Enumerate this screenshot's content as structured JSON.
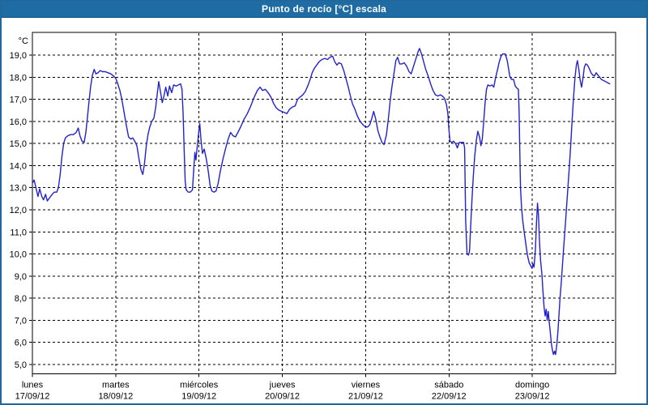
{
  "window": {
    "title": "Punto de rocío [°C] escala",
    "colors": {
      "title_bar": "#1e6ca3",
      "frame": "#20689b",
      "title_text": "#ffffff"
    }
  },
  "chart_data": {
    "type": "line",
    "title": "Punto de rocío [°C] escala",
    "y_unit_label": "°C",
    "y_tick_labels": [
      "19,0",
      "18,0",
      "17,0",
      "16,0",
      "15,0",
      "14,0",
      "13,0",
      "12,0",
      "11,0",
      "10,0",
      "9,0",
      "8,0",
      "7,0",
      "6,0",
      "5,0"
    ],
    "y_tick_values": [
      19,
      18,
      17,
      16,
      15,
      14,
      13,
      12,
      11,
      10,
      9,
      8,
      7,
      6,
      5
    ],
    "ylim": [
      4.6,
      20.0
    ],
    "grid": "dashed",
    "line_color": "#2222cc",
    "x_axis_days": [
      {
        "name": "lunes",
        "date": "17/09/12"
      },
      {
        "name": "martes",
        "date": "18/09/12"
      },
      {
        "name": "miércoles",
        "date": "19/09/12"
      },
      {
        "name": "jueves",
        "date": "20/09/12"
      },
      {
        "name": "viernes",
        "date": "21/09/12"
      },
      {
        "name": "sábado",
        "date": "22/09/12"
      },
      {
        "name": "domingo",
        "date": "23/09/12"
      }
    ],
    "x_unit": "hours_since_monday_00h",
    "x_range_hours": [
      0,
      168
    ],
    "points": [
      [
        0,
        13.2
      ],
      [
        0.5,
        13.35
      ],
      [
        1.1,
        12.95
      ],
      [
        1.6,
        12.6
      ],
      [
        2.1,
        12.95
      ],
      [
        2.7,
        12.6
      ],
      [
        3.2,
        12.45
      ],
      [
        3.8,
        12.7
      ],
      [
        4.3,
        12.4
      ],
      [
        5,
        12.55
      ],
      [
        5.7,
        12.7
      ],
      [
        6.3,
        12.8
      ],
      [
        7,
        12.8
      ],
      [
        7.5,
        13
      ],
      [
        8,
        13.6
      ],
      [
        8.5,
        14.4
      ],
      [
        9,
        15
      ],
      [
        9.5,
        15.25
      ],
      [
        10.2,
        15.35
      ],
      [
        11,
        15.4
      ],
      [
        11.8,
        15.4
      ],
      [
        12.6,
        15.5
      ],
      [
        13.2,
        15.7
      ],
      [
        13.7,
        15.35
      ],
      [
        14.3,
        15.1
      ],
      [
        14.9,
        15.05
      ],
      [
        15.4,
        15.5
      ],
      [
        15.8,
        16.1
      ],
      [
        16.3,
        16.9
      ],
      [
        16.8,
        17.6
      ],
      [
        17.3,
        18.1
      ],
      [
        17.8,
        18.35
      ],
      [
        18.3,
        18.15
      ],
      [
        18.9,
        18.2
      ],
      [
        19.5,
        18.3
      ],
      [
        20.2,
        18.25
      ],
      [
        21,
        18.25
      ],
      [
        21.8,
        18.2
      ],
      [
        22.6,
        18.15
      ],
      [
        23.4,
        18.05
      ],
      [
        24,
        17.95
      ],
      [
        24.6,
        17.7
      ],
      [
        25.2,
        17.4
      ],
      [
        25.7,
        17.05
      ],
      [
        26.2,
        16.6
      ],
      [
        26.7,
        16.15
      ],
      [
        27.2,
        15.7
      ],
      [
        27.7,
        15.3
      ],
      [
        28.3,
        15.2
      ],
      [
        28.9,
        15.25
      ],
      [
        29.5,
        15.1
      ],
      [
        30.1,
        14.9
      ],
      [
        30.7,
        14.3
      ],
      [
        31.3,
        13.8
      ],
      [
        31.8,
        13.6
      ],
      [
        32.3,
        14.1
      ],
      [
        32.8,
        14.9
      ],
      [
        33.3,
        15.4
      ],
      [
        33.8,
        15.75
      ],
      [
        34.4,
        16
      ],
      [
        35,
        16.15
      ],
      [
        35.5,
        16.6
      ],
      [
        36,
        17.3
      ],
      [
        36.4,
        17.8
      ],
      [
        36.9,
        17.35
      ],
      [
        37.4,
        16.85
      ],
      [
        37.9,
        17.15
      ],
      [
        38.4,
        17.55
      ],
      [
        39,
        17.15
      ],
      [
        39.5,
        17.6
      ],
      [
        40.1,
        17.3
      ],
      [
        40.7,
        17.65
      ],
      [
        41.4,
        17.6
      ],
      [
        42.1,
        17.65
      ],
      [
        42.7,
        17.7
      ],
      [
        43.1,
        17.45
      ],
      [
        43.4,
        16.4
      ],
      [
        43.7,
        14.8
      ],
      [
        44,
        13.3
      ],
      [
        44.3,
        12.9
      ],
      [
        44.9,
        12.8
      ],
      [
        45.5,
        12.8
      ],
      [
        46.1,
        12.9
      ],
      [
        46.5,
        13.9
      ],
      [
        46.8,
        14.6
      ],
      [
        47.1,
        14.25
      ],
      [
        47.5,
        14.9
      ],
      [
        47.9,
        15.5
      ],
      [
        48.2,
        15.9
      ],
      [
        48.6,
        15.1
      ],
      [
        49,
        14.55
      ],
      [
        49.5,
        14.75
      ],
      [
        50.1,
        14.3
      ],
      [
        50.7,
        13.7
      ],
      [
        51.2,
        13.1
      ],
      [
        51.7,
        12.85
      ],
      [
        52.3,
        12.8
      ],
      [
        52.9,
        12.85
      ],
      [
        53.5,
        13.2
      ],
      [
        54.2,
        13.8
      ],
      [
        54.9,
        14.3
      ],
      [
        55.7,
        14.8
      ],
      [
        56.4,
        15.2
      ],
      [
        57.1,
        15.5
      ],
      [
        57.8,
        15.35
      ],
      [
        58.5,
        15.3
      ],
      [
        59.2,
        15.5
      ],
      [
        60,
        15.75
      ],
      [
        61,
        16.1
      ],
      [
        61.9,
        16.35
      ],
      [
        62.9,
        16.7
      ],
      [
        63.9,
        17.1
      ],
      [
        64.8,
        17.4
      ],
      [
        65.6,
        17.55
      ],
      [
        66.3,
        17.4
      ],
      [
        67.1,
        17.45
      ],
      [
        67.9,
        17.3
      ],
      [
        68.7,
        17.1
      ],
      [
        69.5,
        16.8
      ],
      [
        70.3,
        16.6
      ],
      [
        71.1,
        16.5
      ],
      [
        71.9,
        16.45
      ],
      [
        72.6,
        16.4
      ],
      [
        73.3,
        16.35
      ],
      [
        74.1,
        16.55
      ],
      [
        74.9,
        16.65
      ],
      [
        75.7,
        16.7
      ],
      [
        76.4,
        17
      ],
      [
        77.1,
        17.1
      ],
      [
        77.9,
        17.2
      ],
      [
        78.6,
        17.35
      ],
      [
        79.3,
        17.6
      ],
      [
        80,
        17.9
      ],
      [
        80.6,
        18.2
      ],
      [
        81.2,
        18.4
      ],
      [
        81.9,
        18.55
      ],
      [
        82.6,
        18.7
      ],
      [
        83.4,
        18.8
      ],
      [
        84.2,
        18.85
      ],
      [
        85,
        18.8
      ],
      [
        85.7,
        18.9
      ],
      [
        86.5,
        18.95
      ],
      [
        87.1,
        18.7
      ],
      [
        87.7,
        18.55
      ],
      [
        88.3,
        18.65
      ],
      [
        89,
        18.6
      ],
      [
        89.7,
        18.3
      ],
      [
        90.4,
        17.9
      ],
      [
        91,
        17.55
      ],
      [
        91.6,
        17.15
      ],
      [
        92.2,
        16.8
      ],
      [
        92.9,
        16.55
      ],
      [
        93.6,
        16.25
      ],
      [
        94.4,
        16
      ],
      [
        95.2,
        15.85
      ],
      [
        95.9,
        15.75
      ],
      [
        96.6,
        15.75
      ],
      [
        97.2,
        15.85
      ],
      [
        97.8,
        16.15
      ],
      [
        98.3,
        16.45
      ],
      [
        98.9,
        16.1
      ],
      [
        99.5,
        15.6
      ],
      [
        100.1,
        15.3
      ],
      [
        100.7,
        15.05
      ],
      [
        101.3,
        14.95
      ],
      [
        102,
        15.4
      ],
      [
        102.6,
        16.2
      ],
      [
        103.1,
        17
      ],
      [
        103.6,
        17.6
      ],
      [
        104.1,
        18.1
      ],
      [
        104.7,
        18.75
      ],
      [
        105.2,
        18.9
      ],
      [
        105.8,
        18.6
      ],
      [
        106.5,
        18.6
      ],
      [
        107.1,
        18.65
      ],
      [
        107.8,
        18.5
      ],
      [
        108.5,
        18.25
      ],
      [
        109.1,
        18.15
      ],
      [
        109.8,
        18.5
      ],
      [
        110.5,
        18.85
      ],
      [
        111.1,
        19.15
      ],
      [
        111.5,
        19.3
      ],
      [
        112.1,
        19.05
      ],
      [
        112.7,
        18.7
      ],
      [
        113.3,
        18.35
      ],
      [
        114,
        18.05
      ],
      [
        114.7,
        17.7
      ],
      [
        115.4,
        17.4
      ],
      [
        116.1,
        17.2
      ],
      [
        116.8,
        17.15
      ],
      [
        117.5,
        17.2
      ],
      [
        118.1,
        17.15
      ],
      [
        118.7,
        17.05
      ],
      [
        119.3,
        16.75
      ],
      [
        119.7,
        16.3
      ],
      [
        120,
        15.6
      ],
      [
        120.3,
        15.1
      ],
      [
        120.8,
        15.05
      ],
      [
        121.3,
        15.1
      ],
      [
        121.9,
        15
      ],
      [
        122.4,
        14.8
      ],
      [
        123,
        15.05
      ],
      [
        123.6,
        15.05
      ],
      [
        124.2,
        15.05
      ],
      [
        124.5,
        14.8
      ],
      [
        124.8,
        11.5
      ],
      [
        125.2,
        10
      ],
      [
        125.6,
        9.95
      ],
      [
        125.9,
        10.1
      ],
      [
        126.2,
        11.1
      ],
      [
        126.6,
        12.4
      ],
      [
        127,
        13.5
      ],
      [
        127.4,
        14.4
      ],
      [
        127.9,
        15.15
      ],
      [
        128.3,
        15.55
      ],
      [
        128.8,
        15.3
      ],
      [
        129.2,
        14.9
      ],
      [
        129.6,
        15.2
      ],
      [
        130,
        15.95
      ],
      [
        130.4,
        16.85
      ],
      [
        130.8,
        17.45
      ],
      [
        131.2,
        17.65
      ],
      [
        131.8,
        17.6
      ],
      [
        132.4,
        17.65
      ],
      [
        132.9,
        17.55
      ],
      [
        133.4,
        17.95
      ],
      [
        134,
        18.35
      ],
      [
        134.5,
        18.7
      ],
      [
        135,
        18.95
      ],
      [
        135.5,
        19.05
      ],
      [
        136.2,
        19.05
      ],
      [
        136.7,
        18.8
      ],
      [
        137.1,
        18.45
      ],
      [
        137.5,
        18.05
      ],
      [
        138,
        17.9
      ],
      [
        138.6,
        17.9
      ],
      [
        139.1,
        17.6
      ],
      [
        139.6,
        17.5
      ],
      [
        140,
        17.45
      ],
      [
        140.2,
        16.4
      ],
      [
        140.4,
        14.7
      ],
      [
        140.6,
        13
      ],
      [
        140.9,
        12.1
      ],
      [
        141.2,
        11.6
      ],
      [
        141.6,
        11.05
      ],
      [
        142.1,
        10.5
      ],
      [
        142.6,
        9.95
      ],
      [
        143.1,
        9.6
      ],
      [
        143.6,
        9.45
      ],
      [
        143.95,
        9.35
      ],
      [
        144.2,
        9.55
      ],
      [
        144.5,
        9.4
      ],
      [
        144.9,
        10.2
      ],
      [
        145.2,
        11.4
      ],
      [
        145.5,
        12.3
      ],
      [
        145.8,
        11.7
      ],
      [
        146.1,
        10.5
      ],
      [
        146.4,
        9.7
      ],
      [
        146.8,
        9.05
      ],
      [
        147.1,
        8.25
      ],
      [
        147.4,
        7.6
      ],
      [
        147.7,
        7.2
      ],
      [
        148,
        7.5
      ],
      [
        148.3,
        7
      ],
      [
        148.6,
        7.4
      ],
      [
        148.9,
        6.9
      ],
      [
        149.2,
        6.45
      ],
      [
        149.5,
        5.95
      ],
      [
        149.8,
        5.65
      ],
      [
        150.1,
        5.45
      ],
      [
        150.4,
        5.6
      ],
      [
        150.7,
        5.45
      ],
      [
        151.1,
        5.95
      ],
      [
        151.4,
        6.55
      ],
      [
        151.7,
        7.25
      ],
      [
        152,
        8
      ],
      [
        152.4,
        8.8
      ],
      [
        152.7,
        9.5
      ],
      [
        153.1,
        10.4
      ],
      [
        153.5,
        11.3
      ],
      [
        153.9,
        12.2
      ],
      [
        154.3,
        13.1
      ],
      [
        154.7,
        14
      ],
      [
        155.1,
        15
      ],
      [
        155.5,
        16.1
      ],
      [
        155.9,
        17.1
      ],
      [
        156.3,
        18
      ],
      [
        156.7,
        18.55
      ],
      [
        157,
        18.75
      ],
      [
        157.4,
        18.35
      ],
      [
        157.8,
        17.85
      ],
      [
        158.2,
        17.55
      ],
      [
        158.6,
        17.95
      ],
      [
        159,
        18.45
      ],
      [
        159.4,
        18.6
      ],
      [
        159.9,
        18.55
      ],
      [
        160.4,
        18.4
      ],
      [
        160.9,
        18.2
      ],
      [
        161.4,
        18.1
      ],
      [
        161.9,
        18.05
      ],
      [
        162.4,
        18.2
      ],
      [
        162.9,
        18.1
      ],
      [
        163.4,
        18
      ],
      [
        163.9,
        17.9
      ],
      [
        164.5,
        17.85
      ],
      [
        165.1,
        17.8
      ],
      [
        165.7,
        17.75
      ],
      [
        166.3,
        17.7
      ]
    ]
  }
}
